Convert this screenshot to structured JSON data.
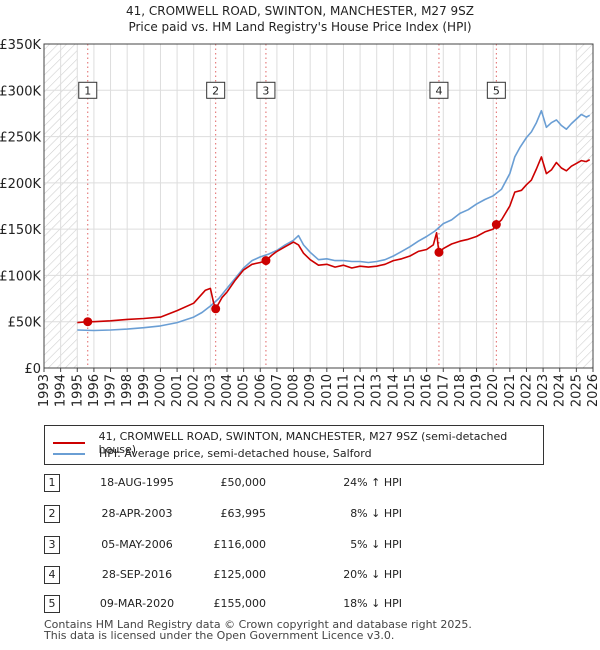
{
  "chart_data": {
    "type": "line",
    "title": "41, CROMWELL ROAD, SWINTON, MANCHESTER, M27 9SZ",
    "subtitle": "Price paid vs. HM Land Registry's House Price Index (HPI)",
    "xlim": [
      1993,
      2026
    ],
    "ylim": [
      0,
      350000
    ],
    "y_ticks": [
      {
        "value": 0,
        "label": "£0"
      },
      {
        "value": 50000,
        "label": "£50K"
      },
      {
        "value": 100000,
        "label": "£100K"
      },
      {
        "value": 150000,
        "label": "£150K"
      },
      {
        "value": 200000,
        "label": "£200K"
      },
      {
        "value": 250000,
        "label": "£250K"
      },
      {
        "value": 300000,
        "label": "£300K"
      },
      {
        "value": 350000,
        "label": "£350K"
      }
    ],
    "x_ticks": [
      "1993",
      "1994",
      "1995",
      "1996",
      "1997",
      "1998",
      "1999",
      "2000",
      "2001",
      "2002",
      "2003",
      "2004",
      "2005",
      "2006",
      "2007",
      "2008",
      "2009",
      "2010",
      "2011",
      "2012",
      "2013",
      "2014",
      "2015",
      "2016",
      "2017",
      "2018",
      "2019",
      "2020",
      "2021",
      "2022",
      "2023",
      "2024",
      "2025",
      "2026"
    ],
    "hatched_before": 1995.0,
    "hatched_after": 2025.0,
    "series": [
      {
        "name": "41, CROMWELL ROAD, SWINTON, MANCHESTER, M27 9SZ (semi-detached house)",
        "color": "#cc0000",
        "points": [
          [
            1995.0,
            49000
          ],
          [
            1995.63,
            50000
          ],
          [
            1996.0,
            50000
          ],
          [
            1997.0,
            51000
          ],
          [
            1998.0,
            52500
          ],
          [
            1999.0,
            53500
          ],
          [
            2000.0,
            55000
          ],
          [
            2001.0,
            62000
          ],
          [
            2002.0,
            70000
          ],
          [
            2002.7,
            84000
          ],
          [
            2003.0,
            86000
          ],
          [
            2003.2,
            70000
          ],
          [
            2003.32,
            63995
          ],
          [
            2003.7,
            76000
          ],
          [
            2004.0,
            82000
          ],
          [
            2004.5,
            95000
          ],
          [
            2005.0,
            106000
          ],
          [
            2005.5,
            112000
          ],
          [
            2006.0,
            114000
          ],
          [
            2006.34,
            116000
          ],
          [
            2006.7,
            122000
          ],
          [
            2007.0,
            126000
          ],
          [
            2007.5,
            131000
          ],
          [
            2008.0,
            136000
          ],
          [
            2008.3,
            133000
          ],
          [
            2008.6,
            124000
          ],
          [
            2009.0,
            117000
          ],
          [
            2009.5,
            111000
          ],
          [
            2010.0,
            112000
          ],
          [
            2010.5,
            109000
          ],
          [
            2011.0,
            111000
          ],
          [
            2011.5,
            108000
          ],
          [
            2012.0,
            110000
          ],
          [
            2012.5,
            109000
          ],
          [
            2013.0,
            110000
          ],
          [
            2013.5,
            112000
          ],
          [
            2014.0,
            116000
          ],
          [
            2014.5,
            118000
          ],
          [
            2015.0,
            121000
          ],
          [
            2015.5,
            126000
          ],
          [
            2016.0,
            128000
          ],
          [
            2016.4,
            133000
          ],
          [
            2016.6,
            146000
          ],
          [
            2016.74,
            125000
          ],
          [
            2017.0,
            129000
          ],
          [
            2017.5,
            134000
          ],
          [
            2018.0,
            137000
          ],
          [
            2018.5,
            139000
          ],
          [
            2019.0,
            142000
          ],
          [
            2019.5,
            147000
          ],
          [
            2020.0,
            150000
          ],
          [
            2020.19,
            155000
          ],
          [
            2020.5,
            160000
          ],
          [
            2021.0,
            175000
          ],
          [
            2021.3,
            190000
          ],
          [
            2021.7,
            192000
          ],
          [
            2022.0,
            198000
          ],
          [
            2022.3,
            203000
          ],
          [
            2022.6,
            215000
          ],
          [
            2022.9,
            228000
          ],
          [
            2023.2,
            210000
          ],
          [
            2023.5,
            214000
          ],
          [
            2023.8,
            222000
          ],
          [
            2024.1,
            216000
          ],
          [
            2024.4,
            213000
          ],
          [
            2024.7,
            218000
          ],
          [
            2025.0,
            221000
          ],
          [
            2025.3,
            224000
          ],
          [
            2025.6,
            223000
          ],
          [
            2025.8,
            225000
          ]
        ]
      },
      {
        "name": "HPI: Average price, semi-detached house, Salford",
        "color": "#6a9ed4",
        "points": [
          [
            1995.0,
            41000
          ],
          [
            1996.0,
            40500
          ],
          [
            1997.0,
            41000
          ],
          [
            1998.0,
            42000
          ],
          [
            1999.0,
            43500
          ],
          [
            2000.0,
            45500
          ],
          [
            2001.0,
            49000
          ],
          [
            2002.0,
            55000
          ],
          [
            2002.5,
            60000
          ],
          [
            2003.0,
            67000
          ],
          [
            2003.5,
            75000
          ],
          [
            2004.0,
            86000
          ],
          [
            2004.5,
            97000
          ],
          [
            2005.0,
            108000
          ],
          [
            2005.5,
            116000
          ],
          [
            2006.0,
            120000
          ],
          [
            2006.5,
            123000
          ],
          [
            2007.0,
            127000
          ],
          [
            2007.5,
            133000
          ],
          [
            2008.0,
            138000
          ],
          [
            2008.3,
            143000
          ],
          [
            2008.6,
            133000
          ],
          [
            2009.0,
            125000
          ],
          [
            2009.5,
            117000
          ],
          [
            2010.0,
            118000
          ],
          [
            2010.5,
            116000
          ],
          [
            2011.0,
            116000
          ],
          [
            2011.5,
            115000
          ],
          [
            2012.0,
            115000
          ],
          [
            2012.5,
            114000
          ],
          [
            2013.0,
            115000
          ],
          [
            2013.5,
            117000
          ],
          [
            2014.0,
            121000
          ],
          [
            2014.5,
            126000
          ],
          [
            2015.0,
            131000
          ],
          [
            2015.5,
            137000
          ],
          [
            2016.0,
            142000
          ],
          [
            2016.5,
            148000
          ],
          [
            2017.0,
            156000
          ],
          [
            2017.5,
            160000
          ],
          [
            2018.0,
            167000
          ],
          [
            2018.5,
            171000
          ],
          [
            2019.0,
            177000
          ],
          [
            2019.5,
            182000
          ],
          [
            2020.0,
            186000
          ],
          [
            2020.5,
            193000
          ],
          [
            2021.0,
            210000
          ],
          [
            2021.3,
            228000
          ],
          [
            2021.6,
            238000
          ],
          [
            2022.0,
            249000
          ],
          [
            2022.3,
            255000
          ],
          [
            2022.6,
            265000
          ],
          [
            2022.9,
            278000
          ],
          [
            2023.2,
            260000
          ],
          [
            2023.5,
            265000
          ],
          [
            2023.8,
            268000
          ],
          [
            2024.1,
            262000
          ],
          [
            2024.4,
            258000
          ],
          [
            2024.7,
            264000
          ],
          [
            2025.0,
            269000
          ],
          [
            2025.3,
            274000
          ],
          [
            2025.6,
            271000
          ],
          [
            2025.8,
            273000
          ]
        ]
      }
    ],
    "sales": [
      {
        "num": "1",
        "x": 1995.63,
        "price": 50000,
        "marker_y": 300000
      },
      {
        "num": "2",
        "x": 2003.32,
        "price": 63995,
        "marker_y": 300000
      },
      {
        "num": "3",
        "x": 2006.34,
        "price": 116000,
        "marker_y": 300000
      },
      {
        "num": "4",
        "x": 2016.74,
        "price": 125000,
        "marker_y": 300000
      },
      {
        "num": "5",
        "x": 2020.19,
        "price": 155000,
        "marker_y": 300000
      }
    ]
  },
  "legend": {
    "property_label": "41, CROMWELL ROAD, SWINTON, MANCHESTER, M27 9SZ (semi-detached house)",
    "hpi_label": "HPI: Average price, semi-detached house, Salford"
  },
  "transactions": [
    {
      "num": "1",
      "date": "18-AUG-1995",
      "price": "£50,000",
      "hpi": "24% ↑ HPI"
    },
    {
      "num": "2",
      "date": "28-APR-2003",
      "price": "£63,995",
      "hpi": "8% ↓ HPI"
    },
    {
      "num": "3",
      "date": "05-MAY-2006",
      "price": "£116,000",
      "hpi": "5% ↓ HPI"
    },
    {
      "num": "4",
      "date": "28-SEP-2016",
      "price": "£125,000",
      "hpi": "20% ↓ HPI"
    },
    {
      "num": "5",
      "date": "09-MAR-2020",
      "price": "£155,000",
      "hpi": "18% ↓ HPI"
    }
  ],
  "footer": {
    "line1": "Contains HM Land Registry data © Crown copyright and database right 2025.",
    "line2": "This data is licensed under the Open Government Licence v3.0."
  }
}
